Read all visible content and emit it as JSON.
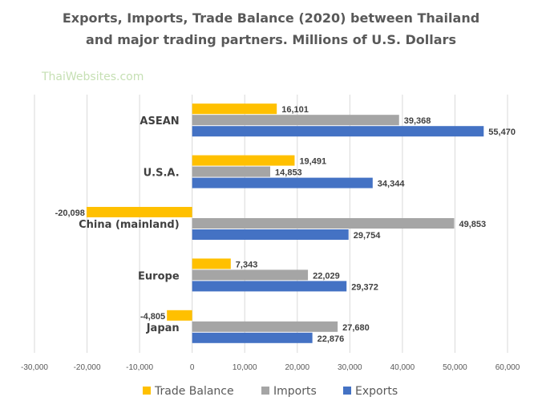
{
  "chart_data": {
    "type": "bar",
    "orientation": "horizontal",
    "title_lines": [
      "Exports, Imports, Trade Balance (2020) between Thailand",
      "and major trading partners. Millions of U.S. Dollars"
    ],
    "watermark": "ThaiWebsites.com",
    "categories": [
      "ASEAN",
      "U.S.A.",
      "China (mainland)",
      "Europe",
      "Japan"
    ],
    "series": [
      {
        "name": "Trade Balance",
        "color": "#ffc000",
        "values": [
          16101,
          19491,
          -20098,
          7343,
          -4805
        ]
      },
      {
        "name": "Imports",
        "color": "#a5a5a5",
        "values": [
          39368,
          14853,
          49853,
          22029,
          27680
        ]
      },
      {
        "name": "Exports",
        "color": "#4472c4",
        "values": [
          55470,
          34344,
          29754,
          29372,
          22876
        ]
      }
    ],
    "xlim": [
      -30000,
      60000
    ],
    "x_ticks": [
      -30000,
      -20000,
      -10000,
      0,
      10000,
      20000,
      30000,
      40000,
      50000,
      60000
    ],
    "x_tick_labels": [
      "-30,000",
      "-20,000",
      "-10,000",
      "0",
      "10,000",
      "20,000",
      "30,000",
      "40,000",
      "50,000",
      "60,000"
    ],
    "data_labels": [
      [
        "16,101",
        "19,491",
        "-20,098",
        "7,343",
        "-4,805"
      ],
      [
        "39,368",
        "14,853",
        "49,853",
        "22,029",
        "27,680"
      ],
      [
        "55,470",
        "34,344",
        "29,754",
        "29,372",
        "22,876"
      ]
    ],
    "grid": "vertical",
    "legend_position": "bottom"
  }
}
